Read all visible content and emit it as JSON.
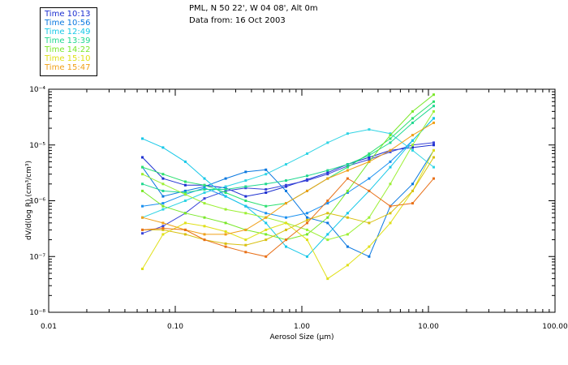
{
  "header": {
    "location": "PML, N 50 22', W 04 08', Alt 0m",
    "date": "Data from: 16 Oct 2003"
  },
  "chart_data": {
    "type": "line",
    "title": "PML, N 50 22', W 04 08', Alt 0m",
    "subtitle": "Data from: 16 Oct 2003",
    "xlabel": "Aerosol Size (μm)",
    "ylabel": "dV/d(log R) (cm³/cm³)",
    "xscale": "log",
    "yscale": "log",
    "xlim": [
      0.01,
      100
    ],
    "ylim": [
      1e-08,
      0.0001
    ],
    "x_tick_labels": [
      "0.01",
      "0.10",
      "1.00",
      "10.00",
      "100.00"
    ],
    "y_tick_labels": [
      "10⁻⁸",
      "10⁻⁷",
      "10⁻⁶",
      "10⁻⁵",
      "10⁻⁴"
    ],
    "legend_position": "top-left",
    "x": [
      0.055,
      0.08,
      0.12,
      0.17,
      0.25,
      0.36,
      0.52,
      0.75,
      1.1,
      1.6,
      2.3,
      3.4,
      5.0,
      7.5,
      11.0
    ],
    "series": [
      {
        "name": "Time 10:13",
        "color": "#1c2fd0",
        "values": [
          6e-06,
          2.5e-06,
          1.9e-06,
          1.9e-06,
          1.7e-06,
          1.2e-06,
          1.4e-06,
          1.8e-06,
          2.4e-06,
          3.2e-06,
          4.5e-06,
          6e-06,
          8e-06,
          9e-06,
          1e-05
        ]
      },
      {
        "name": "Time 10:13",
        "color": "#3a44d8",
        "values": [
          2.6e-07,
          3.5e-07,
          6e-07,
          1.1e-06,
          1.5e-06,
          1.7e-06,
          1.6e-06,
          1.9e-06,
          2.3e-06,
          3e-06,
          4.2e-06,
          5.5e-06,
          7.5e-06,
          1e-05,
          1.1e-05
        ]
      },
      {
        "name": "Time 10:56",
        "color": "#0a78e0",
        "values": [
          4e-06,
          1.2e-06,
          1.5e-06,
          1.8e-06,
          2.5e-06,
          3.3e-06,
          3.6e-06,
          1.5e-06,
          5e-07,
          4e-07,
          1.5e-07,
          1e-07,
          8e-07,
          2e-06,
          8e-06
        ]
      },
      {
        "name": "Time 10:56",
        "color": "#1a90f0",
        "values": [
          8e-07,
          9e-07,
          1.3e-06,
          1.7e-06,
          1.2e-06,
          8e-07,
          6e-07,
          5e-07,
          6e-07,
          9e-07,
          1.4e-06,
          2.5e-06,
          5e-06,
          1.2e-05,
          3e-05
        ]
      },
      {
        "name": "Time 12:49",
        "color": "#16c8e8",
        "values": [
          1.3e-05,
          9e-06,
          5e-06,
          2.5e-06,
          1.2e-06,
          8e-07,
          4e-07,
          1.5e-07,
          1e-07,
          2.5e-07,
          6e-07,
          1.5e-06,
          4e-06,
          1.2e-05,
          3e-05
        ]
      },
      {
        "name": "Time 12:49",
        "color": "#30d4e4",
        "values": [
          5e-07,
          7e-07,
          1e-06,
          1.4e-06,
          1.8e-06,
          2.3e-06,
          3e-06,
          4.5e-06,
          7e-06,
          1.1e-05,
          1.6e-05,
          1.9e-05,
          1.6e-05,
          8e-06,
          4e-06
        ]
      },
      {
        "name": "Time 13:39",
        "color": "#20d890",
        "values": [
          2e-06,
          1.5e-06,
          1.4e-06,
          1.6e-06,
          1.6e-06,
          1.8e-06,
          2e-06,
          2.3e-06,
          2.8e-06,
          3.5e-06,
          4.5e-06,
          6.5e-06,
          1.1e-05,
          2.5e-05,
          5e-05
        ]
      },
      {
        "name": "Time 13:39",
        "color": "#2ce070",
        "values": [
          4e-06,
          3e-06,
          2.2e-06,
          1.9e-06,
          1.4e-06,
          1e-06,
          8e-07,
          9e-07,
          1.5e-06,
          2.5e-06,
          4e-06,
          7e-06,
          1.3e-05,
          3e-05,
          6e-05
        ]
      },
      {
        "name": "Time 14:22",
        "color": "#7ae82a",
        "values": [
          1.5e-06,
          8e-07,
          6e-07,
          5e-07,
          4e-07,
          3e-07,
          2.5e-07,
          2e-07,
          2.5e-07,
          5e-07,
          1.5e-06,
          5e-06,
          1.5e-05,
          4e-05,
          8e-05
        ]
      },
      {
        "name": "Time 14:22",
        "color": "#9cf034",
        "values": [
          3e-06,
          2e-06,
          1.3e-06,
          9e-07,
          7e-07,
          6e-07,
          5e-07,
          4e-07,
          3e-07,
          2e-07,
          2.5e-07,
          5e-07,
          2e-06,
          1e-05,
          4e-05
        ]
      },
      {
        "name": "Time 15:10",
        "color": "#e0e018",
        "values": [
          6e-08,
          2.5e-07,
          4e-07,
          3.5e-07,
          2.8e-07,
          2e-07,
          3e-07,
          4e-07,
          2e-07,
          4e-08,
          7e-08,
          1.5e-07,
          4e-07,
          1.5e-06,
          8e-06
        ]
      },
      {
        "name": "Time 15:10",
        "color": "#d8c010",
        "values": [
          3e-07,
          3e-07,
          2.5e-07,
          2e-07,
          1.7e-07,
          1.6e-07,
          2e-07,
          3e-07,
          4.5e-07,
          6e-07,
          5e-07,
          4e-07,
          6e-07,
          1.5e-06,
          6e-06
        ]
      },
      {
        "name": "Time 15:47",
        "color": "#f0a018",
        "values": [
          5e-07,
          4e-07,
          3e-07,
          2.5e-07,
          2.5e-07,
          3e-07,
          5e-07,
          9e-07,
          1.5e-06,
          2.5e-06,
          3.5e-06,
          5e-06,
          8e-06,
          1.5e-05,
          2.5e-05
        ]
      },
      {
        "name": "Time 15:47",
        "color": "#e87018",
        "values": [
          3e-07,
          3.2e-07,
          3e-07,
          2e-07,
          1.5e-07,
          1.2e-07,
          1e-07,
          2e-07,
          4e-07,
          1e-06,
          2.5e-06,
          1.5e-06,
          8e-07,
          9e-07,
          2.5e-06
        ]
      }
    ]
  },
  "legend": [
    {
      "label": "Time 10:13",
      "color": "#1c2fd0"
    },
    {
      "label": "Time 10:56",
      "color": "#0a78e0"
    },
    {
      "label": "Time 12:49",
      "color": "#16c8e8"
    },
    {
      "label": "Time 13:39",
      "color": "#20d890"
    },
    {
      "label": "Time 14:22",
      "color": "#7ae82a"
    },
    {
      "label": "Time 15:10",
      "color": "#e0e018"
    },
    {
      "label": "Time 15:47",
      "color": "#f0a018"
    }
  ]
}
